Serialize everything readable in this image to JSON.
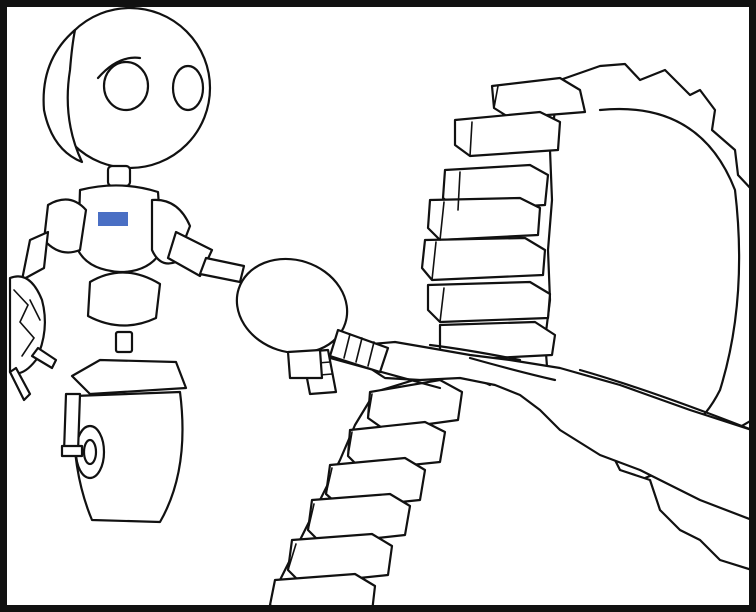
{
  "scene": {
    "description_label": "",
    "colors": {
      "border": "#111111",
      "ink": "#111111",
      "paper": "#ffffff",
      "chest_panel": "#4a6fc4"
    },
    "icons": [
      "robot-icon",
      "gear-icon",
      "wheel-icon",
      "hand-icon"
    ]
  }
}
